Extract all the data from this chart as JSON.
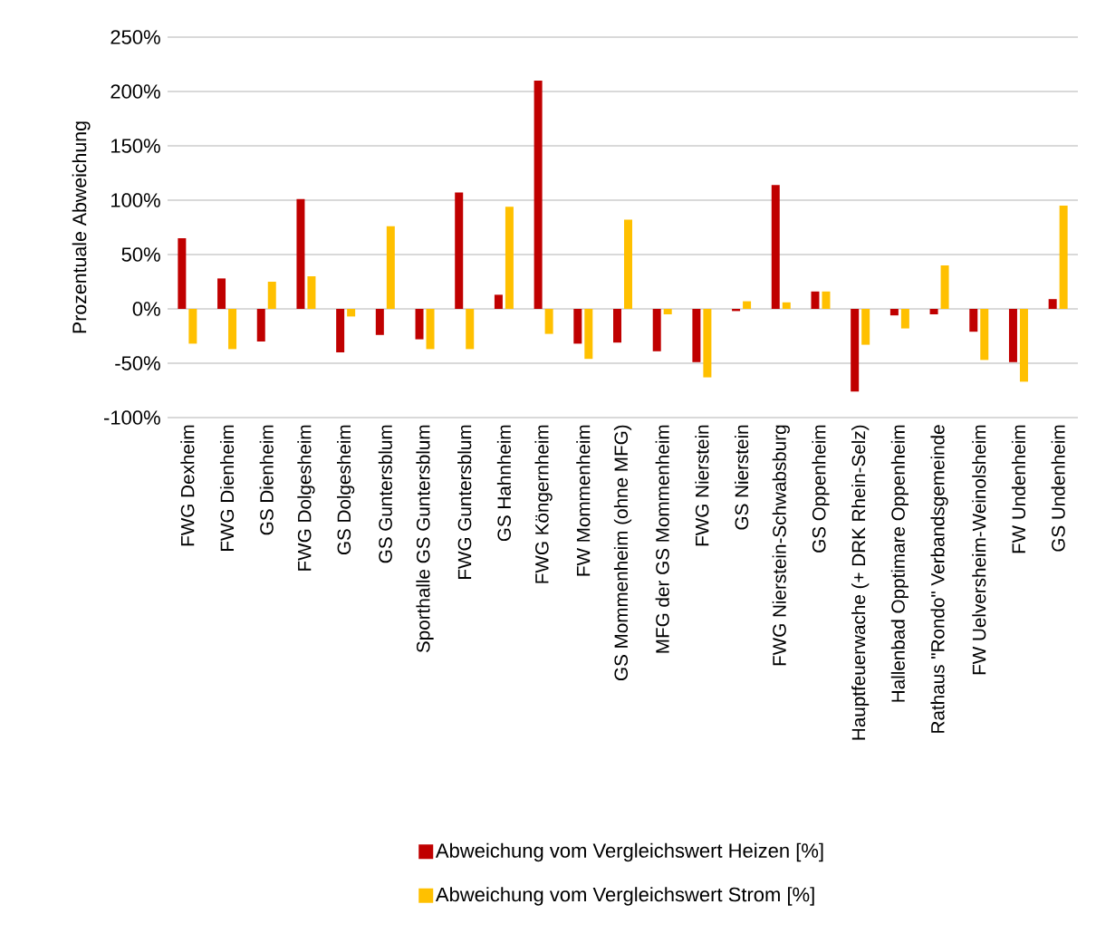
{
  "chart_data": {
    "type": "bar",
    "ylabel": "Prozentuale Abweichung",
    "categories": [
      "FWG Dexheim",
      "FWG Dienheim",
      "GS Dienheim",
      "FWG Dolgesheim",
      "GS Dolgesheim",
      "GS Guntersblum",
      "Sporthalle GS Guntersblum",
      "FWG Guntersblum",
      "GS Hahnheim",
      "FWG Köngernheim",
      "FW Mommenheim",
      "GS Mommenheim (ohne MFG)",
      "MFG der GS Mommenheim",
      "FWG Nierstein",
      "GS Nierstein",
      "FWG Nierstein-Schwabsburg",
      "GS Oppenheim",
      "Hauptfeuerwache (+ DRK Rhein-Selz)",
      "Hallenbad Opptimare Oppenheim",
      "Rathaus \"Rondo\" Verbandsgemeinde",
      "FW Uelversheim-Weinolsheim",
      "FW Undenheim",
      "GS  Undenheim"
    ],
    "series": [
      {
        "name": "Abweichung vom Vergleichswert Heizen [%]",
        "color": "#c00000",
        "values": [
          65,
          28,
          -30,
          101,
          -40,
          -24,
          -28,
          107,
          13,
          210,
          -32,
          -31,
          -39,
          -49,
          -2,
          114,
          16,
          -76,
          -6,
          -5,
          -21,
          -49,
          9
        ]
      },
      {
        "name": "Abweichung vom Vergleichswert Strom [%]",
        "color": "#ffc000",
        "values": [
          -32,
          -37,
          25,
          30,
          -7,
          76,
          -37,
          -37,
          94,
          -23,
          -46,
          82,
          -5,
          -63,
          7,
          6,
          16,
          -33,
          -18,
          40,
          -47,
          -67,
          95
        ]
      }
    ],
    "ylim": [
      -100,
      250
    ],
    "yticks": [
      {
        "value": -100,
        "label": "-100%"
      },
      {
        "value": -50,
        "label": "-50%"
      },
      {
        "value": 0,
        "label": "0%"
      },
      {
        "value": 50,
        "label": "50%"
      },
      {
        "value": 100,
        "label": "100%"
      },
      {
        "value": 150,
        "label": "150%"
      },
      {
        "value": 200,
        "label": "200%"
      },
      {
        "value": 250,
        "label": "250%"
      }
    ],
    "grid": "y",
    "legend": "bottom"
  }
}
